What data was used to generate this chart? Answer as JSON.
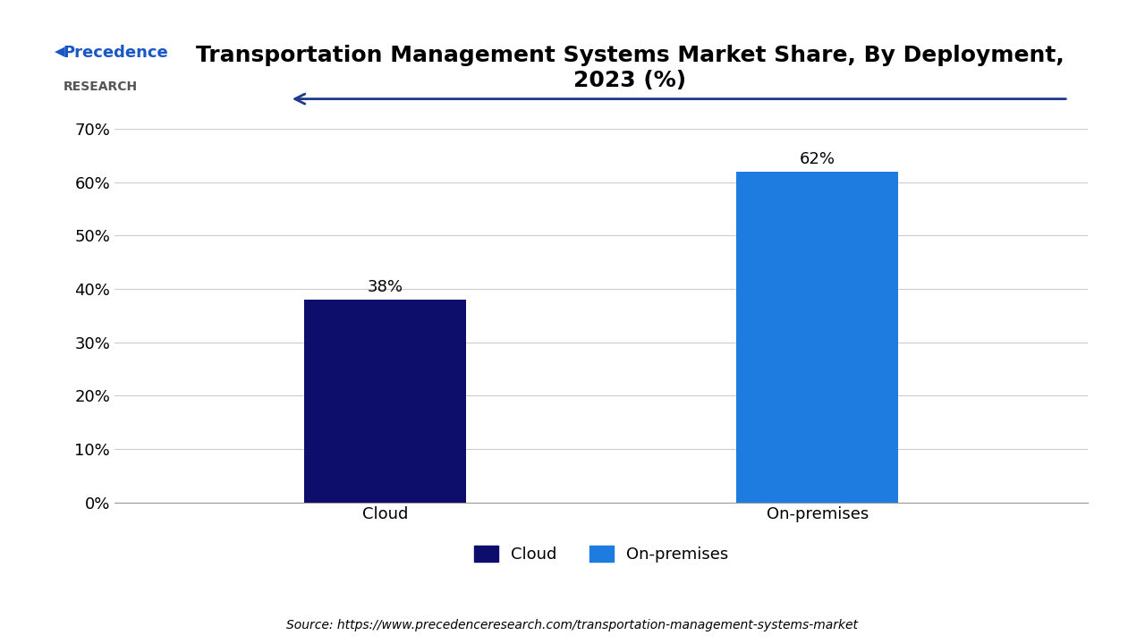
{
  "title": "Transportation Management Systems Market Share, By Deployment,\n2023 (%)",
  "categories": [
    "Cloud",
    "On-premises"
  ],
  "values": [
    38,
    62
  ],
  "bar_colors": [
    "#0d0d6b",
    "#1e7be0"
  ],
  "bar_labels": [
    "38%",
    "62%"
  ],
  "ylim": [
    0,
    70
  ],
  "yticks": [
    0,
    10,
    20,
    30,
    40,
    50,
    60,
    70
  ],
  "ytick_labels": [
    "0%",
    "10%",
    "20%",
    "30%",
    "40%",
    "50%",
    "60%",
    "70%"
  ],
  "legend_labels": [
    "Cloud",
    "On-premises"
  ],
  "legend_colors": [
    "#0d0d6b",
    "#1e7be0"
  ],
  "source_text": "Source: https://www.precedenceresearch.com/transportation-management-systems-market",
  "background_color": "#ffffff",
  "title_fontsize": 18,
  "label_fontsize": 13,
  "tick_fontsize": 13,
  "bar_label_fontsize": 13,
  "arrow_color": "#1e3a8a"
}
